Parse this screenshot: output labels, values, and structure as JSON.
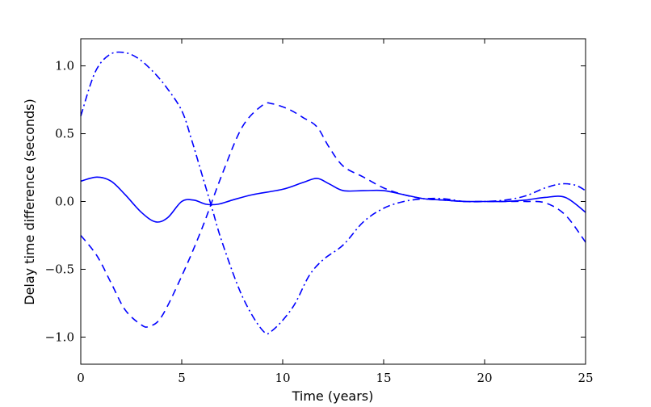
{
  "chart_data": {
    "type": "line",
    "title": "",
    "xlabel": "Time (years)",
    "ylabel": "Delay time difference (seconds)",
    "xlim": [
      0,
      25
    ],
    "ylim": [
      -1.2,
      1.2
    ],
    "xticks": [
      0,
      5,
      10,
      15,
      20,
      25
    ],
    "xtick_labels": [
      "0",
      "5",
      "10",
      "15",
      "20",
      "25"
    ],
    "yticks": [
      -1.0,
      -0.5,
      0.0,
      0.5,
      1.0
    ],
    "ytick_labels": [
      "−1.0",
      "−0.5",
      "0.0",
      "0.5",
      "1.0"
    ],
    "grid": false,
    "legend": "none",
    "series": [
      {
        "style": "solid",
        "color": "#0000ff",
        "x": [
          0,
          0.8,
          1.5,
          2.2,
          3.0,
          3.7,
          4.3,
          5.0,
          5.6,
          6.2,
          6.8,
          7.5,
          8.5,
          10.0,
          11.0,
          11.7,
          12.3,
          13.0,
          14.0,
          15.0,
          16.0,
          17.0,
          18.0,
          19.0,
          20.0,
          21.0,
          22.0,
          23.0,
          24.0,
          25.0
        ],
        "y": [
          0.15,
          0.18,
          0.15,
          0.05,
          -0.08,
          -0.15,
          -0.12,
          0.0,
          0.01,
          -0.02,
          -0.02,
          0.01,
          0.05,
          0.09,
          0.14,
          0.17,
          0.13,
          0.08,
          0.08,
          0.08,
          0.05,
          0.02,
          0.01,
          0.0,
          0.0,
          0.0,
          0.01,
          0.03,
          0.03,
          -0.08
        ]
      },
      {
        "style": "dashed",
        "color": "#0000ff",
        "x": [
          0,
          0.8,
          1.5,
          2.2,
          3.0,
          3.4,
          4.0,
          5.0,
          6.0,
          7.0,
          8.0,
          9.0,
          9.5,
          10.3,
          11.0,
          11.7,
          12.3,
          13.0,
          14.0,
          15.0,
          16.0,
          17.0,
          18.0,
          19.0,
          20.0,
          21.0,
          22.0,
          23.0,
          24.0,
          25.0
        ],
        "y": [
          -0.25,
          -0.4,
          -0.6,
          -0.8,
          -0.91,
          -0.92,
          -0.85,
          -0.55,
          -0.2,
          0.2,
          0.55,
          0.71,
          0.72,
          0.68,
          0.62,
          0.55,
          0.4,
          0.26,
          0.18,
          0.1,
          0.05,
          0.02,
          0.01,
          0.0,
          0.0,
          0.0,
          0.0,
          -0.01,
          -0.1,
          -0.3
        ]
      },
      {
        "style": "dashdot",
        "color": "#0000ff",
        "x": [
          0,
          0.7,
          1.4,
          2.1,
          2.8,
          3.5,
          4.2,
          5.0,
          5.5,
          6.0,
          6.5,
          7.0,
          8.0,
          9.0,
          9.5,
          10.5,
          11.3,
          12.0,
          13.0,
          14.0,
          15.0,
          16.0,
          17.0,
          18.0,
          19.0,
          20.0,
          21.0,
          22.0,
          23.0,
          23.8,
          24.5,
          25.0
        ],
        "y": [
          0.63,
          0.95,
          1.08,
          1.1,
          1.06,
          0.97,
          0.85,
          0.67,
          0.45,
          0.2,
          -0.05,
          -0.3,
          -0.7,
          -0.95,
          -0.95,
          -0.78,
          -0.55,
          -0.43,
          -0.32,
          -0.15,
          -0.05,
          0.0,
          0.02,
          0.02,
          0.0,
          0.0,
          0.01,
          0.04,
          0.1,
          0.13,
          0.12,
          0.08
        ]
      }
    ]
  }
}
